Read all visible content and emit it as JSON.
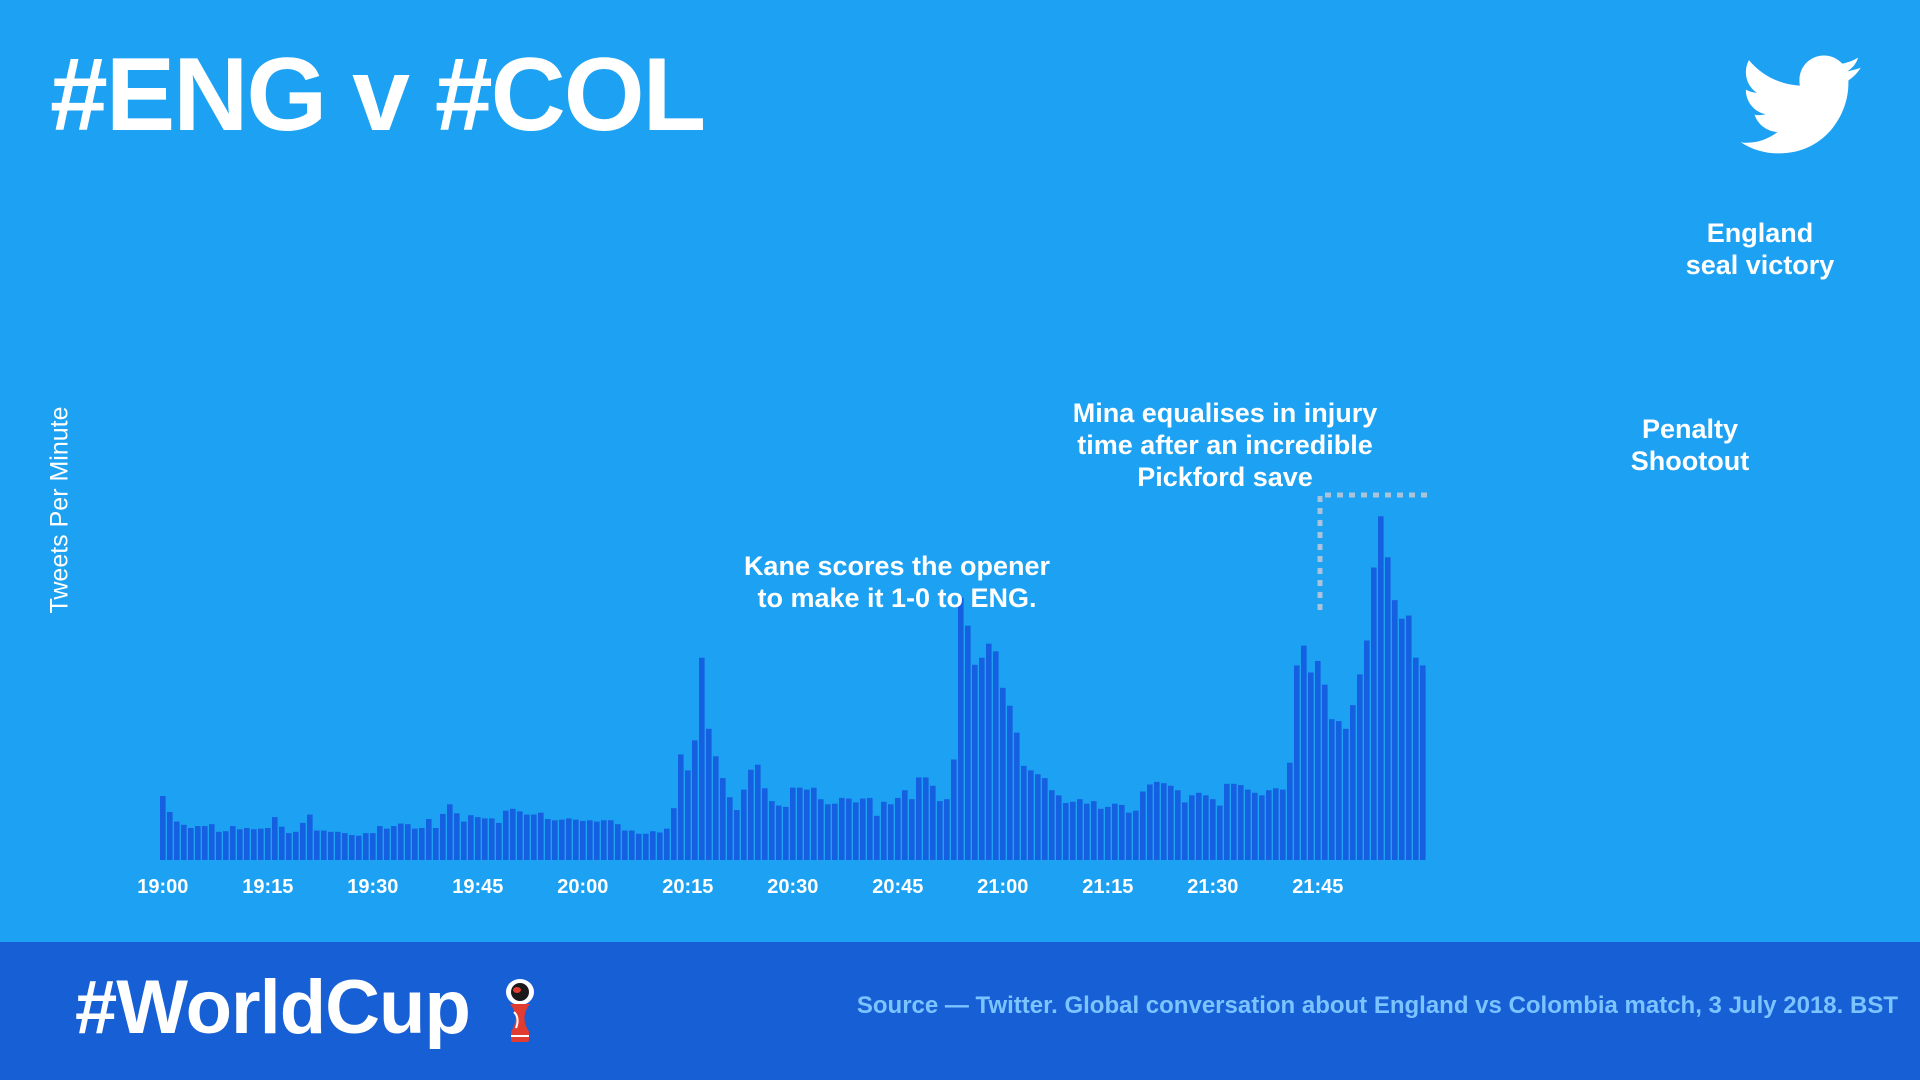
{
  "title": "#ENG v #COL",
  "footer": {
    "hashtag": "#WorldCup",
    "source": "Source — Twitter. Global conversation about England vs Colombia match, 3 July 2018. BST"
  },
  "colors": {
    "background": "#1da1f2",
    "bars": "#1560e0",
    "footer": "#175fd4",
    "source_text": "#7cc4ff",
    "bracket": "#a9c3db"
  },
  "icons": {
    "brand": "twitter-bird-icon",
    "trophy": "world-cup-trophy-icon"
  },
  "annotations": [
    {
      "id": "kane",
      "lines": [
        "Kane scores the opener",
        "to make it 1-0 to ENG."
      ],
      "time_index": 80
    },
    {
      "id": "mina",
      "lines": [
        "Mina equalises in injury",
        "time after an incredible",
        "Pickford save"
      ],
      "time_index": 115
    },
    {
      "id": "penalty",
      "lines": [
        "Penalty",
        "Shootout"
      ],
      "time_index": 165
    },
    {
      "id": "victory",
      "lines": [
        "England",
        "seal victory"
      ],
      "time_index": 173
    }
  ],
  "chart_data": {
    "type": "bar",
    "ylabel": "Tweets Per Minute",
    "xlabel": "",
    "title": "#ENG v #COL",
    "grid": false,
    "ylim": [
      0,
      100
    ],
    "xticks": [
      {
        "label": "19:00",
        "index": 0
      },
      {
        "label": "19:15",
        "index": 15
      },
      {
        "label": "19:30",
        "index": 30
      },
      {
        "label": "19:45",
        "index": 45
      },
      {
        "label": "20:00",
        "index": 60
      },
      {
        "label": "20:15",
        "index": 75
      },
      {
        "label": "20:30",
        "index": 90
      },
      {
        "label": "20:45",
        "index": 105
      },
      {
        "label": "21:00",
        "index": 120
      },
      {
        "label": "21:15",
        "index": 135
      },
      {
        "label": "21:30",
        "index": 150
      },
      {
        "label": "21:45",
        "index": 165
      }
    ],
    "values": [
      10,
      7.5,
      6,
      5.5,
      5,
      5.3,
      5.3,
      5.6,
      4.4,
      4.5,
      5.3,
      4.8,
      5,
      4.8,
      4.9,
      5,
      6.7,
      5.2,
      4.2,
      4.4,
      5.8,
      7.1,
      4.6,
      4.6,
      4.4,
      4.4,
      4.2,
      3.9,
      3.8,
      4.2,
      4.2,
      5.3,
      4.9,
      5.3,
      5.7,
      5.6,
      4.9,
      5,
      6.4,
      5,
      7.2,
      8.7,
      7.3,
      6,
      7,
      6.7,
      6.5,
      6.5,
      5.8,
      7.7,
      8,
      7.6,
      7.1,
      7.1,
      7.4,
      6.4,
      6.2,
      6.3,
      6.5,
      6.3,
      6.1,
      6.2,
      6,
      6.2,
      6.2,
      5.6,
      4.6,
      4.6,
      4.1,
      4.1,
      4.5,
      4.3,
      4.9,
      8.1,
      16.5,
      14,
      18.7,
      31.6,
      20.5,
      16.2,
      12.8,
      9.8,
      7.8,
      11,
      14.1,
      14.9,
      11.2,
      9.2,
      8.5,
      8.3,
      11.3,
      11.3,
      11,
      11.3,
      9.5,
      8.7,
      8.8,
      9.7,
      9.6,
      9,
      9.6,
      9.7,
      6.9,
      9.1,
      8.7,
      9.7,
      10.9,
      9.5,
      12.9,
      12.9,
      11.6,
      9.2,
      9.5,
      15.7,
      41,
      36.6,
      30.5,
      31.6,
      33.8,
      32.6,
      26.9,
      24.1,
      19.9,
      14.7,
      14,
      13.4,
      12.8,
      10.9,
      10.1,
      8.9,
      9.1,
      9.5,
      8.8,
      9.2,
      8,
      8.3,
      8.8,
      8.6,
      7.4,
      7.7,
      10.7,
      11.8,
      12.2,
      12,
      11.6,
      10.9,
      9,
      10.1,
      10.5,
      10.1,
      9.5,
      8.5,
      11.9,
      11.9,
      11.7,
      11,
      10.5,
      10.1,
      10.9,
      11.2,
      11,
      15.2,
      30.4,
      33.5,
      29.3,
      31.1,
      27.4,
      22,
      21.7,
      20.5,
      24.2,
      29,
      34.3,
      45.7,
      53.7,
      47.3,
      40.6,
      37.7,
      38.2,
      31.6,
      30.4
    ]
  }
}
